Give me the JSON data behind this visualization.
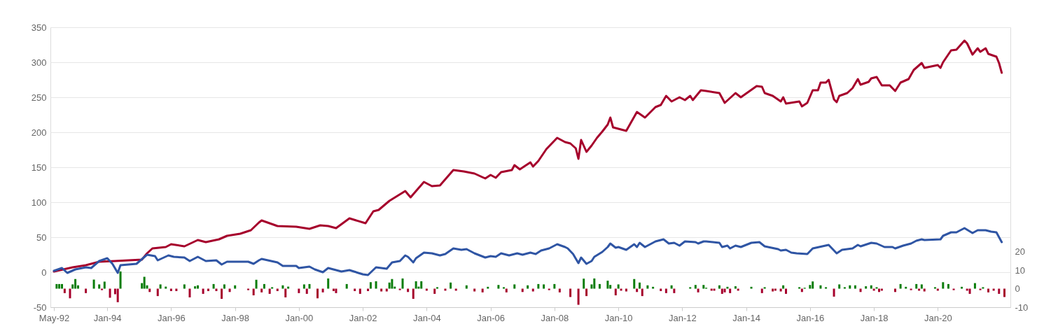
{
  "chart_data": {
    "type": "line",
    "xlim": [
      "1992-05",
      "2022-03"
    ],
    "xticks": [
      {
        "value": "1992-05",
        "label": "May-92"
      },
      {
        "value": "1994-01",
        "label": "Jan-94"
      },
      {
        "value": "1996-01",
        "label": "Jan-96"
      },
      {
        "value": "1998-01",
        "label": "Jan-98"
      },
      {
        "value": "2000-01",
        "label": "Jan-00"
      },
      {
        "value": "2002-01",
        "label": "Jan-02"
      },
      {
        "value": "2004-01",
        "label": "Jan-04"
      },
      {
        "value": "2006-01",
        "label": "Jan-06"
      },
      {
        "value": "2008-01",
        "label": "Jan-08"
      },
      {
        "value": "2010-01",
        "label": "Jan-10"
      },
      {
        "value": "2012-01",
        "label": "Jan-12"
      },
      {
        "value": "2014-01",
        "label": "Jan-14"
      },
      {
        "value": "2016-01",
        "label": "Jan-16"
      },
      {
        "value": "2018-01",
        "label": "Jan-18"
      },
      {
        "value": "2020-01",
        "label": "Jan-20"
      }
    ],
    "ylim": [
      -50,
      350
    ],
    "yticks": [
      -50,
      0,
      50,
      100,
      150,
      200,
      250,
      300,
      350
    ],
    "y2lim": [
      -10,
      141
    ],
    "y2ticks": [
      -10,
      0,
      10,
      20
    ],
    "grid": "y",
    "series": [
      {
        "color": "#a6002c",
        "x": [
          "1992-05",
          "1992-12",
          "1993-05",
          "1993-10",
          "1994-04",
          "1995-02",
          "1995-04",
          "1995-06",
          "1995-11",
          "1996-01",
          "1996-06",
          "1996-11",
          "1997-02",
          "1997-07",
          "1997-10",
          "1998-03",
          "1998-07",
          "1998-10",
          "1998-11",
          "1999-05",
          "1999-12",
          "2000-05",
          "2000-09",
          "2000-12",
          "2001-03",
          "2001-08",
          "2002-02",
          "2002-05",
          "2002-07",
          "2002-11",
          "2003-05",
          "2003-07",
          "2003-09",
          "2003-12",
          "2004-03",
          "2004-06",
          "2004-11",
          "2005-03",
          "2005-07",
          "2005-11",
          "2006-01",
          "2006-03",
          "2006-05",
          "2006-09",
          "2006-10",
          "2006-12",
          "2007-04",
          "2007-05",
          "2007-07",
          "2007-10",
          "2008-02",
          "2008-05",
          "2008-07",
          "2008-09",
          "2008-10",
          "2008-11",
          "2009-01",
          "2009-03",
          "2009-05",
          "2009-07",
          "2009-09",
          "2009-10",
          "2009-11",
          "2010-04",
          "2010-08",
          "2010-11",
          "2011-03",
          "2011-05",
          "2011-07",
          "2011-09",
          "2011-12",
          "2012-02",
          "2012-04",
          "2012-05",
          "2012-08",
          "2012-10",
          "2013-03",
          "2013-05",
          "2013-09",
          "2013-11",
          "2014-05",
          "2014-07",
          "2014-08",
          "2014-11",
          "2015-02",
          "2015-03",
          "2015-04",
          "2015-09",
          "2015-10",
          "2015-12",
          "2016-02",
          "2016-04",
          "2016-05",
          "2016-07",
          "2016-08",
          "2016-10",
          "2016-11",
          "2016-12",
          "2017-03",
          "2017-05",
          "2017-07",
          "2017-08",
          "2017-11",
          "2017-12",
          "2018-02",
          "2018-04",
          "2018-07",
          "2018-09",
          "2018-11",
          "2019-02",
          "2019-04",
          "2019-07",
          "2019-08",
          "2020-01",
          "2020-02",
          "2020-03",
          "2020-06",
          "2020-08",
          "2020-11",
          "2020-12",
          "2021-02",
          "2021-04",
          "2021-05",
          "2021-07",
          "2021-08",
          "2021-11",
          "2021-12",
          "2022-01"
        ],
        "values": [
          1,
          7,
          10,
          15,
          16,
          18,
          27,
          34,
          36,
          40,
          37,
          46,
          43,
          47,
          52,
          55,
          60,
          71,
          74,
          66,
          65,
          62,
          67,
          66,
          63,
          77,
          70,
          87,
          89,
          102,
          116,
          107,
          116,
          129,
          123,
          124,
          146,
          144,
          141,
          134,
          139,
          135,
          143,
          146,
          153,
          147,
          157,
          151,
          159,
          176,
          192,
          186,
          184,
          177,
          162,
          189,
          172,
          181,
          192,
          201,
          211,
          221,
          207,
          202,
          229,
          221,
          236,
          239,
          252,
          244,
          250,
          246,
          252,
          246,
          260,
          259,
          256,
          242,
          256,
          250,
          266,
          265,
          256,
          252,
          244,
          250,
          241,
          244,
          237,
          242,
          260,
          260,
          271,
          271,
          275,
          247,
          243,
          252,
          256,
          263,
          276,
          268,
          272,
          277,
          279,
          267,
          267,
          259,
          271,
          276,
          289,
          299,
          292,
          296,
          292,
          300,
          317,
          318,
          331,
          327,
          311,
          320,
          315,
          320,
          312,
          308,
          299,
          285
        ]
      },
      {
        "color": "#2f55a4",
        "x": [
          "1992-05",
          "1992-08",
          "1992-10",
          "1993-01",
          "1993-05",
          "1993-07",
          "1993-10",
          "1994-01",
          "1994-03",
          "1994-05",
          "1994-06",
          "1994-12",
          "1995-04",
          "1995-07",
          "1995-08",
          "1995-12",
          "1996-02",
          "1996-06",
          "1996-08",
          "1996-11",
          "1997-02",
          "1997-06",
          "1997-08",
          "1997-10",
          "1998-06",
          "1998-08",
          "1998-10",
          "1998-11",
          "1999-05",
          "1999-07",
          "1999-12",
          "2000-01",
          "2000-05",
          "2000-07",
          "2000-10",
          "2000-12",
          "2001-05",
          "2001-08",
          "2002-01",
          "2002-03",
          "2002-06",
          "2002-10",
          "2002-12",
          "2003-03",
          "2003-05",
          "2003-06",
          "2003-08",
          "2003-09",
          "2003-12",
          "2004-03",
          "2004-06",
          "2004-08",
          "2004-11",
          "2005-02",
          "2005-04",
          "2005-07",
          "2005-11",
          "2006-01",
          "2006-03",
          "2006-05",
          "2006-08",
          "2006-11",
          "2007-01",
          "2007-04",
          "2007-06",
          "2007-08",
          "2007-11",
          "2008-02",
          "2008-05",
          "2008-06",
          "2008-08",
          "2008-10",
          "2008-11",
          "2009-01",
          "2009-03",
          "2009-04",
          "2009-07",
          "2009-09",
          "2009-10",
          "2009-12",
          "2010-01",
          "2010-04",
          "2010-07",
          "2010-08",
          "2010-09",
          "2010-11",
          "2011-03",
          "2011-06",
          "2011-08",
          "2011-10",
          "2011-12",
          "2012-02",
          "2012-06",
          "2012-07",
          "2012-09",
          "2012-10",
          "2013-03",
          "2013-04",
          "2013-06",
          "2013-07",
          "2013-09",
          "2013-11",
          "2014-03",
          "2014-06",
          "2014-08",
          "2015-01",
          "2015-02",
          "2015-04",
          "2015-06",
          "2015-08",
          "2015-12",
          "2016-02",
          "2016-08",
          "2016-11",
          "2017-01",
          "2017-05",
          "2017-07",
          "2017-08",
          "2017-12",
          "2018-02",
          "2018-05",
          "2018-08",
          "2018-09",
          "2018-12",
          "2019-03",
          "2019-05",
          "2019-07",
          "2019-08",
          "2020-02",
          "2020-03",
          "2020-06",
          "2020-08",
          "2020-11",
          "2021-02",
          "2021-04",
          "2021-07",
          "2021-09",
          "2021-11",
          "2022-01"
        ],
        "values": [
          2,
          6,
          -1,
          4,
          7,
          6,
          16,
          20,
          12,
          -1,
          10,
          12,
          25,
          23,
          17,
          24,
          22,
          21,
          16,
          22,
          16,
          17,
          11,
          15,
          15,
          12,
          17,
          19,
          14,
          9,
          9,
          6,
          8,
          4,
          0,
          6,
          1,
          3,
          -3,
          -4,
          7,
          5,
          14,
          16,
          24,
          22,
          14,
          20,
          28,
          27,
          24,
          26,
          34,
          32,
          33,
          27,
          21,
          23,
          22,
          27,
          24,
          27,
          25,
          28,
          26,
          31,
          34,
          40,
          36,
          34,
          26,
          13,
          21,
          12,
          16,
          22,
          29,
          36,
          41,
          35,
          36,
          32,
          40,
          36,
          42,
          36,
          44,
          47,
          41,
          42,
          38,
          44,
          43,
          41,
          44,
          44,
          42,
          36,
          38,
          34,
          38,
          36,
          42,
          43,
          37,
          33,
          31,
          32,
          28,
          27,
          26,
          34,
          39,
          27,
          32,
          34,
          39,
          37,
          42,
          41,
          36,
          36,
          34,
          38,
          41,
          45,
          47,
          46,
          47,
          52,
          57,
          57,
          63,
          56,
          60,
          60,
          58,
          57,
          43
        ]
      },
      {
        "type": "bar",
        "axis": "y2",
        "color": "#0a7d0a",
        "x": [
          "1992-06",
          "1992-07",
          "1992-08",
          "1992-12",
          "1993-01",
          "1993-02",
          "1993-08",
          "1993-10",
          "1993-12",
          "1994-06",
          "1995-02",
          "1995-03",
          "1995-04",
          "1995-09",
          "1995-11",
          "1996-06",
          "1996-10",
          "1996-11",
          "1997-05",
          "1997-09",
          "1998-01",
          "1998-09",
          "1998-12",
          "1999-03",
          "1999-07",
          "1999-09",
          "2000-03",
          "2000-05",
          "2000-12",
          "2001-07",
          "2002-04",
          "2002-06",
          "2002-11",
          "2002-12",
          "2003-01",
          "2003-04",
          "2003-09",
          "2003-10",
          "2003-11",
          "2004-05",
          "2004-10",
          "2005-04",
          "2005-12",
          "2006-04",
          "2006-06",
          "2006-10",
          "2007-03",
          "2007-07",
          "2007-09",
          "2008-01",
          "2008-12",
          "2009-03",
          "2009-04",
          "2009-06",
          "2009-09",
          "2009-10",
          "2010-01",
          "2010-07",
          "2010-09",
          "2010-12",
          "2011-02",
          "2011-09",
          "2012-04",
          "2012-06",
          "2012-09",
          "2012-10",
          "2013-03",
          "2013-06",
          "2013-09",
          "2014-03",
          "2014-08",
          "2015-03",
          "2015-09",
          "2015-11",
          "2016-01",
          "2016-02",
          "2016-05",
          "2016-07",
          "2016-12",
          "2017-02",
          "2017-04",
          "2017-06",
          "2017-10",
          "2017-12",
          "2018-02",
          "2018-11",
          "2019-01",
          "2019-05",
          "2019-07",
          "2019-12",
          "2020-03",
          "2020-05",
          "2020-10",
          "2021-03",
          "2021-06"
        ],
        "values": [
          2.5,
          2.5,
          2.5,
          2.3,
          5.2,
          1.8,
          4.9,
          2.3,
          3.8,
          9.3,
          3,
          6.4,
          1.8,
          2.3,
          1.1,
          2.3,
          1.3,
          1.8,
          2.5,
          2.3,
          1.8,
          4.8,
          2.5,
          0.8,
          1.8,
          1.1,
          2.3,
          2.5,
          5.5,
          2.5,
          3.5,
          4,
          3.3,
          5.2,
          1.1,
          5.5,
          4,
          1.1,
          4,
          0.8,
          3.3,
          1.8,
          1,
          2,
          0.8,
          2.3,
          1.8,
          2.5,
          2.3,
          2.5,
          5.4,
          2.3,
          5.5,
          2.5,
          4.3,
          2,
          2.3,
          5.2,
          3.3,
          1.8,
          1,
          1.8,
          0.8,
          2,
          2,
          0.5,
          1.8,
          1,
          1.3,
          1,
          0.8,
          1.8,
          0.8,
          0.5,
          2,
          3.9,
          1.8,
          0.8,
          2.3,
          0.8,
          1.8,
          1.8,
          1.3,
          1.8,
          0.8,
          2.5,
          1,
          2.5,
          2.3,
          0.8,
          3.5,
          2.5,
          1,
          3,
          0.8
        ]
      },
      {
        "type": "bar",
        "axis": "y2",
        "color": "#a6002c",
        "x": [
          "1992-09",
          "1992-11",
          "1993-05",
          "1993-11",
          "1994-02",
          "1994-04",
          "1994-05",
          "1995-05",
          "1995-08",
          "1996-01",
          "1996-03",
          "1996-08",
          "1997-01",
          "1997-03",
          "1997-06",
          "1997-08",
          "1997-11",
          "1998-06",
          "1998-08",
          "1998-11",
          "1999-02",
          "1999-05",
          "1999-08",
          "2000-01",
          "2000-04",
          "2000-08",
          "2000-10",
          "2001-02",
          "2001-03",
          "2001-10",
          "2001-12",
          "2002-03",
          "2002-08",
          "2002-10",
          "2003-03",
          "2003-06",
          "2003-08",
          "2004-01",
          "2004-04",
          "2004-08",
          "2004-12",
          "2005-07",
          "2005-10",
          "2006-07",
          "2007-01",
          "2007-05",
          "2007-11",
          "2008-03",
          "2008-07",
          "2008-10",
          "2009-01",
          "2009-12",
          "2010-02",
          "2010-04",
          "2010-08",
          "2010-10",
          "2011-05",
          "2011-07",
          "2011-10",
          "2012-07",
          "2012-12",
          "2013-01",
          "2013-04",
          "2013-05",
          "2013-07",
          "2013-10",
          "2014-07",
          "2014-11",
          "2014-12",
          "2015-02",
          "2015-04",
          "2015-10",
          "2016-10",
          "2017-08",
          "2018-01",
          "2018-03",
          "2018-04",
          "2018-09",
          "2019-03",
          "2019-06",
          "2019-08",
          "2020-01",
          "2020-07",
          "2020-12",
          "2021-01",
          "2021-05",
          "2021-08",
          "2021-10",
          "2021-12",
          "2022-02"
        ],
        "values": [
          -2.4,
          -5.2,
          -2.4,
          -0.8,
          -4.9,
          -3,
          -7.3,
          -1.8,
          -4,
          -1.3,
          -1.3,
          -4.7,
          -2.8,
          -1.3,
          -1.3,
          -5.5,
          -1.8,
          -0.8,
          -3.6,
          -2,
          -2.8,
          -1.3,
          -4.7,
          -2.4,
          -2.8,
          -5.2,
          -2,
          -1.3,
          -2.4,
          -1.3,
          -2.8,
          -1.3,
          -1.5,
          -1.5,
          -0.8,
          -1.8,
          -5.5,
          -1.1,
          -2.8,
          -1.1,
          -1.1,
          -1.5,
          -2,
          -2,
          -1.8,
          -1.5,
          -0.8,
          -2,
          -4.5,
          -8.7,
          -4,
          -3.6,
          -1.1,
          -1.5,
          -1.8,
          -4,
          -1.3,
          -2.4,
          -2.4,
          -2,
          -1.1,
          -1.1,
          -2.8,
          -2,
          -2.4,
          -1.1,
          -2.4,
          -1.5,
          -1.1,
          -1.5,
          -2.8,
          -1.8,
          -4.3,
          -1.8,
          -1.1,
          -1.8,
          -1.1,
          -1.8,
          -0.8,
          -1.1,
          -1.5,
          -1.1,
          -0.8,
          -1.1,
          -2.8,
          -0.8,
          -2,
          -1.1,
          -2.8,
          -4.5
        ]
      }
    ]
  }
}
